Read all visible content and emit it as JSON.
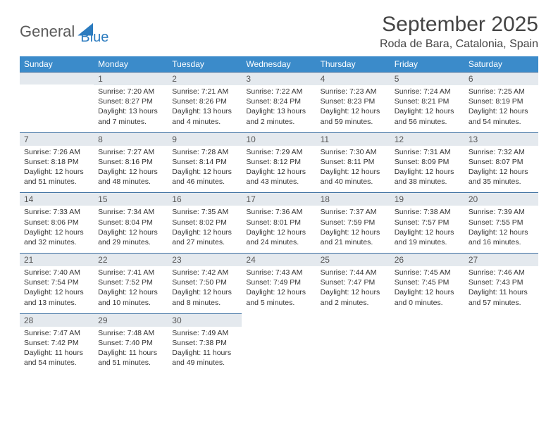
{
  "brand": {
    "name_a": "General",
    "name_b": "Blue"
  },
  "title": "September 2025",
  "location": "Roda de Bara, Catalonia, Spain",
  "colors": {
    "header_bg": "#3b8bca",
    "strip_bg": "#e4e9ee",
    "strip_border": "#3b6ea0",
    "brand_blue": "#2b7bbf",
    "text": "#333333"
  },
  "weekdays": [
    "Sunday",
    "Monday",
    "Tuesday",
    "Wednesday",
    "Thursday",
    "Friday",
    "Saturday"
  ],
  "weeks": [
    [
      {
        "n": "",
        "sr": "",
        "ss": "",
        "dl": ""
      },
      {
        "n": "1",
        "sr": "Sunrise: 7:20 AM",
        "ss": "Sunset: 8:27 PM",
        "dl": "Daylight: 13 hours and 7 minutes."
      },
      {
        "n": "2",
        "sr": "Sunrise: 7:21 AM",
        "ss": "Sunset: 8:26 PM",
        "dl": "Daylight: 13 hours and 4 minutes."
      },
      {
        "n": "3",
        "sr": "Sunrise: 7:22 AM",
        "ss": "Sunset: 8:24 PM",
        "dl": "Daylight: 13 hours and 2 minutes."
      },
      {
        "n": "4",
        "sr": "Sunrise: 7:23 AM",
        "ss": "Sunset: 8:23 PM",
        "dl": "Daylight: 12 hours and 59 minutes."
      },
      {
        "n": "5",
        "sr": "Sunrise: 7:24 AM",
        "ss": "Sunset: 8:21 PM",
        "dl": "Daylight: 12 hours and 56 minutes."
      },
      {
        "n": "6",
        "sr": "Sunrise: 7:25 AM",
        "ss": "Sunset: 8:19 PM",
        "dl": "Daylight: 12 hours and 54 minutes."
      }
    ],
    [
      {
        "n": "7",
        "sr": "Sunrise: 7:26 AM",
        "ss": "Sunset: 8:18 PM",
        "dl": "Daylight: 12 hours and 51 minutes."
      },
      {
        "n": "8",
        "sr": "Sunrise: 7:27 AM",
        "ss": "Sunset: 8:16 PM",
        "dl": "Daylight: 12 hours and 48 minutes."
      },
      {
        "n": "9",
        "sr": "Sunrise: 7:28 AM",
        "ss": "Sunset: 8:14 PM",
        "dl": "Daylight: 12 hours and 46 minutes."
      },
      {
        "n": "10",
        "sr": "Sunrise: 7:29 AM",
        "ss": "Sunset: 8:12 PM",
        "dl": "Daylight: 12 hours and 43 minutes."
      },
      {
        "n": "11",
        "sr": "Sunrise: 7:30 AM",
        "ss": "Sunset: 8:11 PM",
        "dl": "Daylight: 12 hours and 40 minutes."
      },
      {
        "n": "12",
        "sr": "Sunrise: 7:31 AM",
        "ss": "Sunset: 8:09 PM",
        "dl": "Daylight: 12 hours and 38 minutes."
      },
      {
        "n": "13",
        "sr": "Sunrise: 7:32 AM",
        "ss": "Sunset: 8:07 PM",
        "dl": "Daylight: 12 hours and 35 minutes."
      }
    ],
    [
      {
        "n": "14",
        "sr": "Sunrise: 7:33 AM",
        "ss": "Sunset: 8:06 PM",
        "dl": "Daylight: 12 hours and 32 minutes."
      },
      {
        "n": "15",
        "sr": "Sunrise: 7:34 AM",
        "ss": "Sunset: 8:04 PM",
        "dl": "Daylight: 12 hours and 29 minutes."
      },
      {
        "n": "16",
        "sr": "Sunrise: 7:35 AM",
        "ss": "Sunset: 8:02 PM",
        "dl": "Daylight: 12 hours and 27 minutes."
      },
      {
        "n": "17",
        "sr": "Sunrise: 7:36 AM",
        "ss": "Sunset: 8:01 PM",
        "dl": "Daylight: 12 hours and 24 minutes."
      },
      {
        "n": "18",
        "sr": "Sunrise: 7:37 AM",
        "ss": "Sunset: 7:59 PM",
        "dl": "Daylight: 12 hours and 21 minutes."
      },
      {
        "n": "19",
        "sr": "Sunrise: 7:38 AM",
        "ss": "Sunset: 7:57 PM",
        "dl": "Daylight: 12 hours and 19 minutes."
      },
      {
        "n": "20",
        "sr": "Sunrise: 7:39 AM",
        "ss": "Sunset: 7:55 PM",
        "dl": "Daylight: 12 hours and 16 minutes."
      }
    ],
    [
      {
        "n": "21",
        "sr": "Sunrise: 7:40 AM",
        "ss": "Sunset: 7:54 PM",
        "dl": "Daylight: 12 hours and 13 minutes."
      },
      {
        "n": "22",
        "sr": "Sunrise: 7:41 AM",
        "ss": "Sunset: 7:52 PM",
        "dl": "Daylight: 12 hours and 10 minutes."
      },
      {
        "n": "23",
        "sr": "Sunrise: 7:42 AM",
        "ss": "Sunset: 7:50 PM",
        "dl": "Daylight: 12 hours and 8 minutes."
      },
      {
        "n": "24",
        "sr": "Sunrise: 7:43 AM",
        "ss": "Sunset: 7:49 PM",
        "dl": "Daylight: 12 hours and 5 minutes."
      },
      {
        "n": "25",
        "sr": "Sunrise: 7:44 AM",
        "ss": "Sunset: 7:47 PM",
        "dl": "Daylight: 12 hours and 2 minutes."
      },
      {
        "n": "26",
        "sr": "Sunrise: 7:45 AM",
        "ss": "Sunset: 7:45 PM",
        "dl": "Daylight: 12 hours and 0 minutes."
      },
      {
        "n": "27",
        "sr": "Sunrise: 7:46 AM",
        "ss": "Sunset: 7:43 PM",
        "dl": "Daylight: 11 hours and 57 minutes."
      }
    ],
    [
      {
        "n": "28",
        "sr": "Sunrise: 7:47 AM",
        "ss": "Sunset: 7:42 PM",
        "dl": "Daylight: 11 hours and 54 minutes."
      },
      {
        "n": "29",
        "sr": "Sunrise: 7:48 AM",
        "ss": "Sunset: 7:40 PM",
        "dl": "Daylight: 11 hours and 51 minutes."
      },
      {
        "n": "30",
        "sr": "Sunrise: 7:49 AM",
        "ss": "Sunset: 7:38 PM",
        "dl": "Daylight: 11 hours and 49 minutes."
      },
      {
        "n": "",
        "sr": "",
        "ss": "",
        "dl": ""
      },
      {
        "n": "",
        "sr": "",
        "ss": "",
        "dl": ""
      },
      {
        "n": "",
        "sr": "",
        "ss": "",
        "dl": ""
      },
      {
        "n": "",
        "sr": "",
        "ss": "",
        "dl": ""
      }
    ]
  ]
}
